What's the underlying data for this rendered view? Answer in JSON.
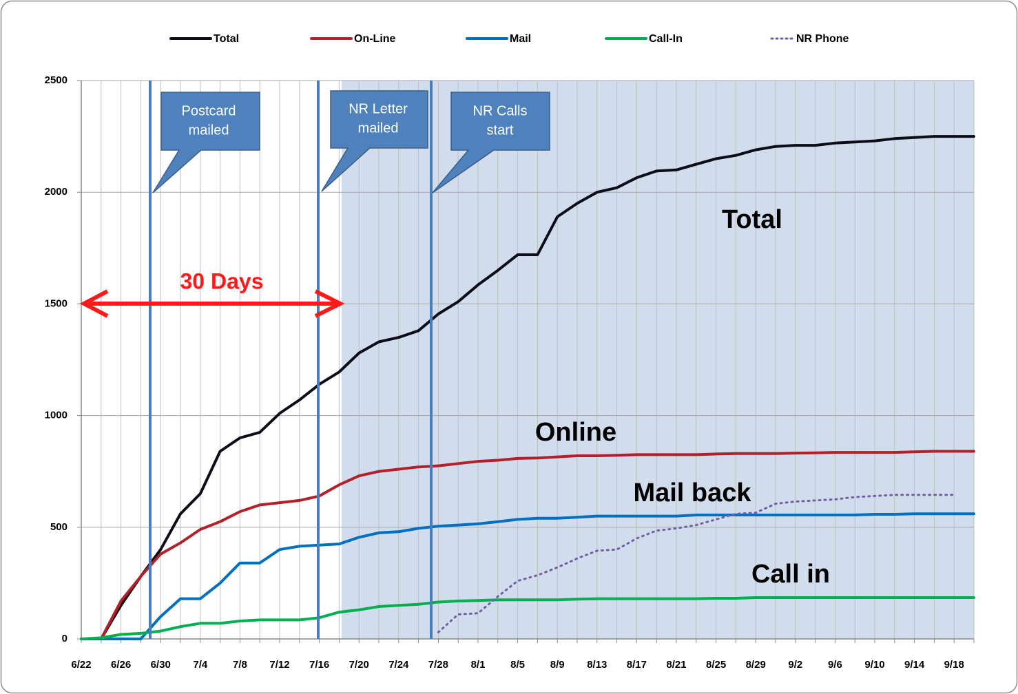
{
  "chart_data": {
    "type": "line",
    "legend": "top",
    "grid": true,
    "categories": [
      "6/22",
      null,
      "6/26",
      null,
      "6/30",
      null,
      "7/4",
      null,
      "7/8",
      null,
      "7/12",
      null,
      "7/16",
      null,
      "7/20",
      null,
      "7/24",
      null,
      "7/28",
      null,
      "8/1",
      null,
      "8/5",
      null,
      "8/9",
      null,
      "8/13",
      null,
      "8/17",
      null,
      "8/21",
      null,
      "8/25",
      null,
      "8/29",
      null,
      "9/2",
      null,
      "9/6",
      null,
      "9/10",
      null,
      "9/14",
      null,
      "9/18",
      null
    ],
    "ylim": [
      0,
      2500
    ],
    "yticks": [
      0,
      500,
      1000,
      1500,
      2000,
      2500
    ],
    "series": [
      {
        "name": "Total",
        "color": "#0d0d1a",
        "style": "solid",
        "values": [
          0,
          0,
          150,
          280,
          400,
          560,
          650,
          840,
          900,
          925,
          1010,
          1070,
          1140,
          1195,
          1280,
          1330,
          1350,
          1380,
          1455,
          1510,
          1585,
          1650,
          1720,
          1720,
          1890,
          1950,
          2000,
          2020,
          2065,
          2095,
          2100,
          2125,
          2150,
          2165,
          2190,
          2205,
          2210,
          2210,
          2220,
          2225,
          2230,
          2240,
          2245,
          2250,
          2250,
          2250
        ]
      },
      {
        "name": "On-Line",
        "color": "#b3202a",
        "style": "solid",
        "values": [
          0,
          0,
          170,
          280,
          380,
          430,
          490,
          525,
          570,
          600,
          610,
          620,
          640,
          690,
          730,
          750,
          760,
          770,
          775,
          785,
          795,
          800,
          808,
          810,
          815,
          820,
          820,
          822,
          825,
          825,
          825,
          825,
          828,
          830,
          830,
          830,
          832,
          833,
          835,
          835,
          835,
          835,
          838,
          840,
          840,
          840
        ]
      },
      {
        "name": "Mail",
        "color": "#0070c0",
        "style": "solid",
        "values": [
          0,
          0,
          0,
          0,
          100,
          180,
          180,
          250,
          340,
          340,
          400,
          415,
          420,
          425,
          455,
          475,
          480,
          495,
          505,
          510,
          515,
          525,
          535,
          540,
          540,
          545,
          550,
          550,
          550,
          550,
          550,
          555,
          555,
          555,
          555,
          555,
          555,
          555,
          555,
          555,
          558,
          558,
          560,
          560,
          560,
          560
        ]
      },
      {
        "name": "Call-In",
        "color": "#00b050",
        "style": "solid",
        "values": [
          0,
          5,
          20,
          25,
          35,
          55,
          70,
          70,
          80,
          85,
          85,
          85,
          95,
          120,
          130,
          145,
          150,
          155,
          165,
          170,
          172,
          175,
          175,
          175,
          175,
          178,
          180,
          180,
          180,
          180,
          180,
          180,
          182,
          182,
          185,
          185,
          185,
          185,
          185,
          185,
          185,
          185,
          185,
          185,
          185,
          185
        ]
      },
      {
        "name": "NR Phone",
        "color": "#7060a0",
        "style": "dotted",
        "values": [
          null,
          null,
          null,
          null,
          null,
          null,
          null,
          null,
          null,
          null,
          null,
          null,
          null,
          null,
          null,
          null,
          null,
          null,
          30,
          110,
          115,
          190,
          260,
          285,
          320,
          360,
          395,
          400,
          450,
          485,
          495,
          510,
          535,
          560,
          565,
          605,
          615,
          620,
          625,
          635,
          640,
          645,
          645,
          645,
          645,
          null
        ]
      }
    ],
    "annotations": {
      "callouts": [
        {
          "lines": [
            "Postcard",
            "mailed"
          ]
        },
        {
          "lines": [
            "NR Letter",
            "mailed"
          ]
        },
        {
          "lines": [
            "NR Calls",
            "start"
          ]
        }
      ],
      "span": "30 Days",
      "labels": [
        "Total",
        "Online",
        "Mail back",
        "Call in"
      ]
    }
  }
}
